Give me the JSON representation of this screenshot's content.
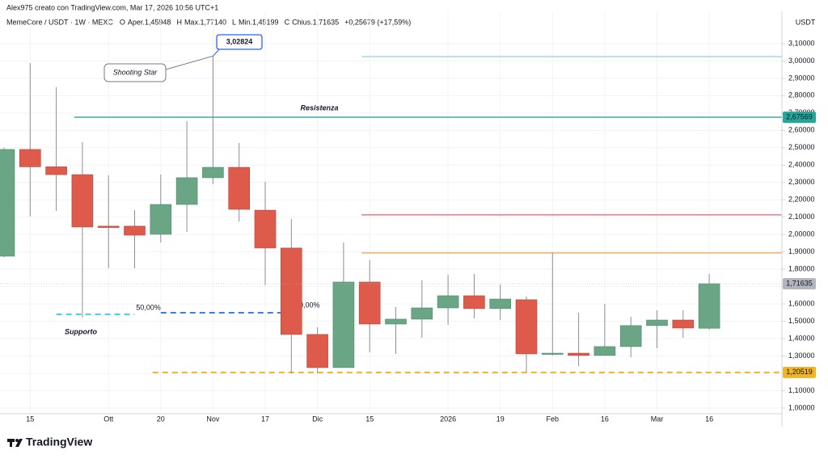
{
  "attribution": "Alex975 creato con TradingView.com, Mar 17, 2026 10:56 UTC+1",
  "brand": "TradingView",
  "chart_data": {
    "type": "candlestick",
    "title": "MemeCore / USDT · 1W · MEXC",
    "header": [
      {
        "key": "O",
        "label": "Aper.",
        "value_label": "1,45948"
      },
      {
        "key": "H",
        "label": "Max.",
        "value_label": "1,77140"
      },
      {
        "key": "L",
        "label": "Min.",
        "value_label": "1,45199"
      },
      {
        "key": "C",
        "label": "Chius.",
        "value_label": "1,71635"
      }
    ],
    "change": "+0,25679 (+17,59%)",
    "y_axis_label": "USDT",
    "categories": [
      null,
      "15",
      null,
      null,
      "Ott",
      null,
      "20",
      null,
      "Nov",
      null,
      "17",
      null,
      "Dic",
      null,
      "15",
      null,
      null,
      "2026",
      null,
      "19",
      null,
      "Feb",
      null,
      "16",
      null,
      "Mar",
      null,
      "16"
    ],
    "open": [
      1.875,
      2.49,
      2.39,
      2.345,
      2.048,
      2.048,
      2.001,
      2.173,
      2.327,
      2.387,
      2.14,
      1.922,
      1.424,
      1.233,
      1.726,
      1.484,
      1.512,
      1.577,
      1.647,
      1.573,
      1.624,
      1.312,
      1.316,
      1.303,
      1.354,
      1.475,
      1.507,
      1.45948
    ],
    "high": [
      2.5,
      2.988,
      2.848,
      2.532,
      2.341,
      2.14,
      2.345,
      2.653,
      3.02824,
      2.527,
      2.304,
      2.089,
      1.466,
      1.954,
      1.852,
      1.582,
      1.736,
      1.768,
      1.773,
      1.712,
      1.642,
      1.894,
      1.549,
      1.6,
      1.526,
      1.563,
      1.563,
      1.7714
    ],
    "low": [
      1.87,
      2.103,
      2.136,
      1.521,
      1.805,
      1.805,
      1.954,
      2.015,
      2.29,
      2.075,
      1.708,
      1.2,
      1.2,
      1.233,
      1.321,
      1.312,
      1.405,
      1.48,
      1.517,
      1.507,
      1.205,
      1.303,
      1.242,
      1.303,
      1.293,
      1.345,
      1.405,
      1.45199
    ],
    "close": [
      2.49,
      2.39,
      2.345,
      2.043,
      2.04,
      1.996,
      2.173,
      2.327,
      2.387,
      2.145,
      1.922,
      1.424,
      1.233,
      1.726,
      1.484,
      1.512,
      1.577,
      1.647,
      1.573,
      1.628,
      1.312,
      1.316,
      1.303,
      1.354,
      1.475,
      1.507,
      1.461,
      1.71635
    ],
    "up_color": "#6aa586",
    "down_color": "#de5b4b",
    "ylim": [
      0.967,
      3.286
    ],
    "yticks": [
      {
        "value": 1.0,
        "label": "1,00000"
      },
      {
        "value": 1.1,
        "label": "1,10000"
      },
      {
        "value": 1.2,
        "label": "1,20000"
      },
      {
        "value": 1.3,
        "label": "1,30000"
      },
      {
        "value": 1.4,
        "label": "1,40000"
      },
      {
        "value": 1.5,
        "label": "1,50000"
      },
      {
        "value": 1.6,
        "label": "1,60000"
      },
      {
        "value": 1.7,
        "label": "1,70000"
      },
      {
        "value": 1.8,
        "label": "1,80000"
      },
      {
        "value": 1.9,
        "label": "1,90000"
      },
      {
        "value": 2.0,
        "label": "2,00000"
      },
      {
        "value": 2.1,
        "label": "2,10000"
      },
      {
        "value": 2.2,
        "label": "2,20000"
      },
      {
        "value": 2.3,
        "label": "2,30000"
      },
      {
        "value": 2.4,
        "label": "2,40000"
      },
      {
        "value": 2.5,
        "label": "2,50000"
      },
      {
        "value": 2.6,
        "label": "2,60000"
      },
      {
        "value": 2.7,
        "label": "2,70000"
      },
      {
        "value": 2.8,
        "label": "2,80000"
      },
      {
        "value": 2.9,
        "label": "2,90000"
      },
      {
        "value": 3.0,
        "label": "3,00000"
      },
      {
        "value": 3.1,
        "label": "3,10000"
      }
    ],
    "grid": true,
    "hlines": [
      {
        "value": 3.025,
        "color": "#9ad8e6",
        "start": 14
      },
      {
        "value": 2.67569,
        "color": "#26a69a",
        "start": 3,
        "price_label": "2,67569",
        "label": "Resistenza"
      },
      {
        "value": 2.113,
        "color": "#e0636b",
        "start": 14
      },
      {
        "value": 1.894,
        "color": "#f5a94e",
        "start": 14
      },
      {
        "value": 1.20519,
        "color": "#f0b429",
        "start": 6,
        "dashed": true,
        "price_label": "1,20519"
      },
      {
        "value": 1.549,
        "color": "#3d7fe0",
        "start": 6,
        "end": 11,
        "dashed": true,
        "label": "50,00%"
      },
      {
        "value": 1.54,
        "color": "#4dd0e1",
        "start": 2,
        "end": 5,
        "dashed": true,
        "label": "Supporto"
      }
    ],
    "fib_label": "0,00%",
    "last_price_label": "1,71635",
    "high_callout": "3,02824",
    "pattern_label": "Shooting Star"
  }
}
